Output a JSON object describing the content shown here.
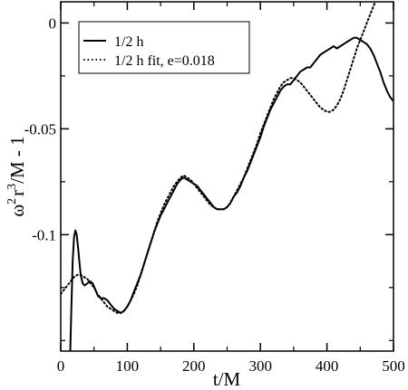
{
  "chart_data": {
    "type": "line",
    "xlabel": "t/M",
    "ylabel": "ω²r³/M - 1",
    "ylabel_parts": {
      "omega": "ω",
      "exp_omega": "2",
      "r": "r",
      "exp_r": "3",
      "rest": "/M - 1"
    },
    "xlim": [
      0,
      500
    ],
    "ylim": [
      -0.155,
      0.01
    ],
    "x_ticks": [
      0,
      100,
      200,
      300,
      400,
      500
    ],
    "y_ticks": [
      0,
      -0.05,
      -0.1
    ],
    "x_tick_labels": [
      "0",
      "100",
      "200",
      "300",
      "400",
      "500"
    ],
    "y_tick_labels": [
      "0",
      "-0.05",
      "-0.1"
    ],
    "grid": false,
    "legend_position": "top-left",
    "series": [
      {
        "name": "1/2 h",
        "style": "solid",
        "color": "#000000",
        "points": [
          [
            14,
            -0.158
          ],
          [
            16,
            -0.135
          ],
          [
            18,
            -0.112
          ],
          [
            20,
            -0.101
          ],
          [
            22,
            -0.098
          ],
          [
            24,
            -0.1
          ],
          [
            26,
            -0.106
          ],
          [
            28,
            -0.113
          ],
          [
            30,
            -0.119
          ],
          [
            33,
            -0.123
          ],
          [
            36,
            -0.124
          ],
          [
            40,
            -0.123
          ],
          [
            44,
            -0.122
          ],
          [
            48,
            -0.123
          ],
          [
            52,
            -0.126
          ],
          [
            56,
            -0.129
          ],
          [
            60,
            -0.13
          ],
          [
            65,
            -0.13
          ],
          [
            70,
            -0.131
          ],
          [
            75,
            -0.133
          ],
          [
            80,
            -0.135
          ],
          [
            85,
            -0.136
          ],
          [
            90,
            -0.137
          ],
          [
            95,
            -0.136
          ],
          [
            100,
            -0.134
          ],
          [
            105,
            -0.131
          ],
          [
            110,
            -0.127
          ],
          [
            115,
            -0.123
          ],
          [
            120,
            -0.119
          ],
          [
            125,
            -0.114
          ],
          [
            130,
            -0.109
          ],
          [
            135,
            -0.104
          ],
          [
            140,
            -0.099
          ],
          [
            145,
            -0.095
          ],
          [
            150,
            -0.091
          ],
          [
            155,
            -0.088
          ],
          [
            160,
            -0.085
          ],
          [
            165,
            -0.082
          ],
          [
            170,
            -0.079
          ],
          [
            175,
            -0.076
          ],
          [
            180,
            -0.074
          ],
          [
            185,
            -0.073
          ],
          [
            190,
            -0.074
          ],
          [
            195,
            -0.075
          ],
          [
            200,
            -0.076
          ],
          [
            205,
            -0.077
          ],
          [
            210,
            -0.079
          ],
          [
            215,
            -0.081
          ],
          [
            220,
            -0.083
          ],
          [
            225,
            -0.085
          ],
          [
            230,
            -0.087
          ],
          [
            235,
            -0.088
          ],
          [
            240,
            -0.088
          ],
          [
            245,
            -0.088
          ],
          [
            250,
            -0.087
          ],
          [
            255,
            -0.085
          ],
          [
            260,
            -0.082
          ],
          [
            265,
            -0.08
          ],
          [
            270,
            -0.077
          ],
          [
            275,
            -0.073
          ],
          [
            280,
            -0.07
          ],
          [
            285,
            -0.066
          ],
          [
            290,
            -0.062
          ],
          [
            295,
            -0.058
          ],
          [
            300,
            -0.054
          ],
          [
            305,
            -0.049
          ],
          [
            310,
            -0.045
          ],
          [
            315,
            -0.041
          ],
          [
            320,
            -0.038
          ],
          [
            325,
            -0.035
          ],
          [
            330,
            -0.032
          ],
          [
            335,
            -0.03
          ],
          [
            340,
            -0.029
          ],
          [
            345,
            -0.029
          ],
          [
            350,
            -0.027
          ],
          [
            355,
            -0.025
          ],
          [
            360,
            -0.023
          ],
          [
            365,
            -0.022
          ],
          [
            370,
            -0.021
          ],
          [
            375,
            -0.021
          ],
          [
            380,
            -0.019
          ],
          [
            385,
            -0.017
          ],
          [
            390,
            -0.015
          ],
          [
            395,
            -0.014
          ],
          [
            400,
            -0.013
          ],
          [
            405,
            -0.012
          ],
          [
            410,
            -0.011
          ],
          [
            415,
            -0.012
          ],
          [
            420,
            -0.011
          ],
          [
            425,
            -0.01
          ],
          [
            430,
            -0.009
          ],
          [
            435,
            -0.008
          ],
          [
            440,
            -0.007
          ],
          [
            445,
            -0.007
          ],
          [
            450,
            -0.008
          ],
          [
            455,
            -0.009
          ],
          [
            460,
            -0.01
          ],
          [
            465,
            -0.012
          ],
          [
            470,
            -0.015
          ],
          [
            475,
            -0.019
          ],
          [
            480,
            -0.023
          ],
          [
            485,
            -0.028
          ],
          [
            490,
            -0.032
          ],
          [
            495,
            -0.035
          ],
          [
            500,
            -0.037
          ]
        ]
      },
      {
        "name": "1/2 h fit, e=0.018",
        "style": "dotted",
        "color": "#000000",
        "points": [
          [
            0,
            -0.128
          ],
          [
            5,
            -0.126
          ],
          [
            10,
            -0.124
          ],
          [
            15,
            -0.122
          ],
          [
            20,
            -0.12
          ],
          [
            25,
            -0.119
          ],
          [
            30,
            -0.119
          ],
          [
            35,
            -0.12
          ],
          [
            40,
            -0.121
          ],
          [
            45,
            -0.123
          ],
          [
            50,
            -0.125
          ],
          [
            55,
            -0.128
          ],
          [
            60,
            -0.13
          ],
          [
            65,
            -0.132
          ],
          [
            70,
            -0.134
          ],
          [
            75,
            -0.135
          ],
          [
            80,
            -0.136
          ],
          [
            85,
            -0.137
          ],
          [
            90,
            -0.137
          ],
          [
            95,
            -0.136
          ],
          [
            100,
            -0.134
          ],
          [
            105,
            -0.131
          ],
          [
            110,
            -0.128
          ],
          [
            115,
            -0.124
          ],
          [
            120,
            -0.119
          ],
          [
            125,
            -0.114
          ],
          [
            130,
            -0.109
          ],
          [
            135,
            -0.104
          ],
          [
            140,
            -0.099
          ],
          [
            145,
            -0.094
          ],
          [
            150,
            -0.09
          ],
          [
            155,
            -0.086
          ],
          [
            160,
            -0.083
          ],
          [
            165,
            -0.08
          ],
          [
            170,
            -0.077
          ],
          [
            175,
            -0.075
          ],
          [
            180,
            -0.073
          ],
          [
            185,
            -0.072
          ],
          [
            190,
            -0.073
          ],
          [
            195,
            -0.074
          ],
          [
            200,
            -0.076
          ],
          [
            205,
            -0.078
          ],
          [
            210,
            -0.08
          ],
          [
            215,
            -0.082
          ],
          [
            220,
            -0.084
          ],
          [
            225,
            -0.086
          ],
          [
            230,
            -0.087
          ],
          [
            235,
            -0.088
          ],
          [
            240,
            -0.088
          ],
          [
            245,
            -0.088
          ],
          [
            250,
            -0.087
          ],
          [
            255,
            -0.085
          ],
          [
            260,
            -0.082
          ],
          [
            265,
            -0.079
          ],
          [
            270,
            -0.076
          ],
          [
            275,
            -0.073
          ],
          [
            280,
            -0.069
          ],
          [
            285,
            -0.065
          ],
          [
            290,
            -0.061
          ],
          [
            295,
            -0.057
          ],
          [
            300,
            -0.052
          ],
          [
            305,
            -0.048
          ],
          [
            310,
            -0.044
          ],
          [
            315,
            -0.04
          ],
          [
            320,
            -0.036
          ],
          [
            325,
            -0.033
          ],
          [
            330,
            -0.03
          ],
          [
            335,
            -0.028
          ],
          [
            340,
            -0.027
          ],
          [
            345,
            -0.026
          ],
          [
            350,
            -0.026
          ],
          [
            355,
            -0.027
          ],
          [
            360,
            -0.028
          ],
          [
            365,
            -0.03
          ],
          [
            370,
            -0.032
          ],
          [
            375,
            -0.034
          ],
          [
            380,
            -0.036
          ],
          [
            385,
            -0.038
          ],
          [
            390,
            -0.04
          ],
          [
            395,
            -0.041
          ],
          [
            400,
            -0.042
          ],
          [
            405,
            -0.042
          ],
          [
            410,
            -0.041
          ],
          [
            415,
            -0.039
          ],
          [
            420,
            -0.036
          ],
          [
            425,
            -0.032
          ],
          [
            430,
            -0.027
          ],
          [
            435,
            -0.022
          ],
          [
            440,
            -0.017
          ],
          [
            445,
            -0.012
          ],
          [
            450,
            -0.008
          ],
          [
            455,
            -0.004
          ],
          [
            460,
            0.0
          ],
          [
            465,
            0.004
          ],
          [
            470,
            0.008
          ],
          [
            474,
            0.011
          ]
        ]
      }
    ]
  }
}
